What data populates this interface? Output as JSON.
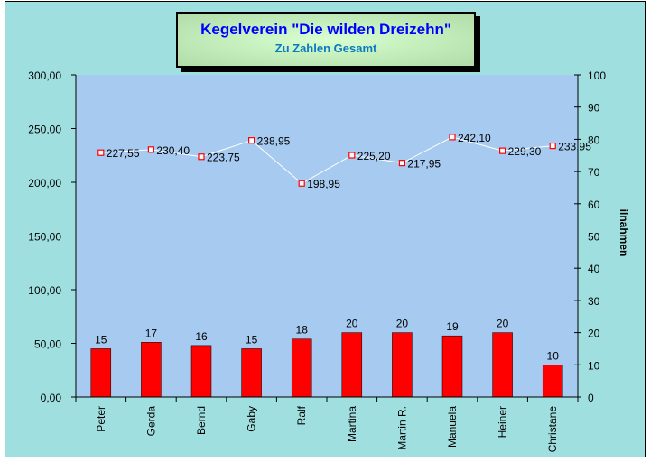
{
  "chart_data": {
    "type": "bar+line",
    "title": "Kegelverein \"Die wilden Dreizehn\"",
    "subtitle": "Zu Zahlen Gesamt",
    "categories": [
      "Peter",
      "Gerda",
      "Bernd",
      "Gaby",
      "Ralf",
      "Martina",
      "Martin R.",
      "Manuela",
      "Heiner",
      "Christane"
    ],
    "series": [
      {
        "type": "line",
        "axis": "left",
        "values": [
          227.55,
          230.4,
          223.75,
          238.95,
          198.95,
          225.2,
          217.95,
          242.1,
          229.3,
          233.95
        ],
        "labels": [
          "227,55",
          "230,40",
          "223,75",
          "238,95",
          "198,95",
          "225,20",
          "217,95",
          "242,10",
          "229,30",
          "233,95"
        ],
        "color": "#ffffff",
        "marker_color": "#ff0000"
      },
      {
        "type": "bar",
        "axis": "right",
        "values": [
          15,
          17,
          16,
          15,
          18,
          20,
          20,
          19,
          20,
          10
        ],
        "color": "#ff0000"
      }
    ],
    "left_axis": {
      "range": [
        0,
        300
      ],
      "step": 50,
      "tick_labels": [
        "0,00",
        "50,00",
        "100,00",
        "150,00",
        "200,00",
        "250,00",
        "300,00"
      ]
    },
    "right_axis": {
      "range": [
        0,
        100
      ],
      "step": 10,
      "label": "ilnahmen",
      "tick_labels": [
        "0",
        "10",
        "20",
        "30",
        "40",
        "50",
        "60",
        "70",
        "80",
        "90",
        "100"
      ]
    },
    "plot_background": "#a6caf0",
    "grid": false,
    "legend": "none"
  }
}
